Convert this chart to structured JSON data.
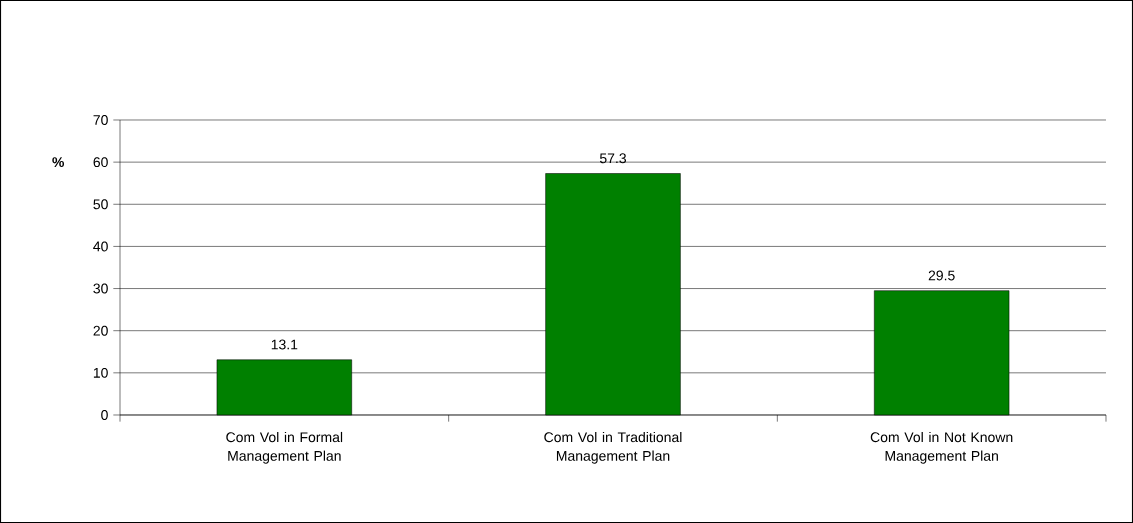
{
  "chart_data": {
    "type": "bar",
    "ylabel": "%",
    "categories": [
      "Com Vol in Formal Management Plan",
      "Com Vol in Traditional Management Plan",
      "Com Vol in Not Known Management Plan"
    ],
    "values": [
      13.1,
      57.3,
      29.5
    ],
    "color": "#008000",
    "ylim": [
      0,
      70
    ],
    "yticks": [
      0,
      10,
      20,
      30,
      40,
      50,
      60,
      70
    ],
    "grid": "y",
    "data_labels": true
  }
}
